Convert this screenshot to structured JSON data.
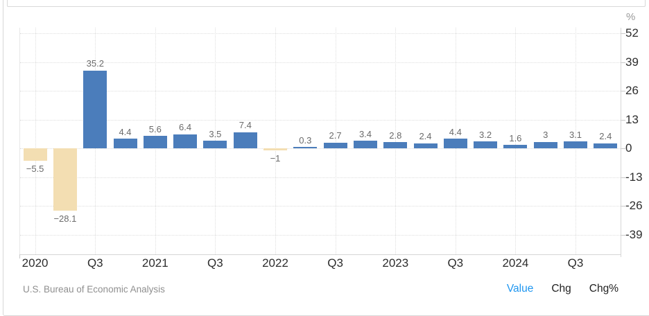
{
  "chart_data": {
    "type": "bar",
    "values": [
      -5.5,
      -28.1,
      35.2,
      4.4,
      5.6,
      6.4,
      3.5,
      7.4,
      -1,
      0.3,
      2.7,
      3.4,
      2.8,
      2.4,
      4.4,
      3.2,
      1.6,
      3,
      3.1,
      2.4
    ],
    "display_labels": [
      "−5.5",
      "−28.1",
      "35.2",
      "4.4",
      "5.6",
      "6.4",
      "3.5",
      "7.4",
      "−1",
      "0.3",
      "2.7",
      "3.4",
      "2.8",
      "2.4",
      "4.4",
      "3.2",
      "1.6",
      "3",
      "3.1",
      "2.4"
    ],
    "x_tick_labels": [
      "2020",
      "Q3",
      "2021",
      "Q3",
      "2022",
      "Q3",
      "2023",
      "Q3",
      "2024",
      "Q3"
    ],
    "y_ticks": [
      52,
      39,
      26,
      13,
      0,
      -13,
      -26,
      -39
    ],
    "y_axis_unit": "%",
    "ylim": [
      -47.8,
      54.5
    ],
    "grid": "dotted",
    "legend_position": "none",
    "title": "",
    "xlabel": "",
    "ylabel": "%"
  },
  "colors": {
    "positive_bar": "#4b7dbb",
    "negative_bar": "#f3deb2",
    "active_mode": "#1e96f0",
    "inactive_mode": "#1f1f1f"
  },
  "footer": {
    "source": "U.S. Bureau of Economic Analysis",
    "modes": [
      {
        "label": "Value",
        "active": true
      },
      {
        "label": "Chg",
        "active": false
      },
      {
        "label": "Chg%",
        "active": false
      }
    ]
  }
}
